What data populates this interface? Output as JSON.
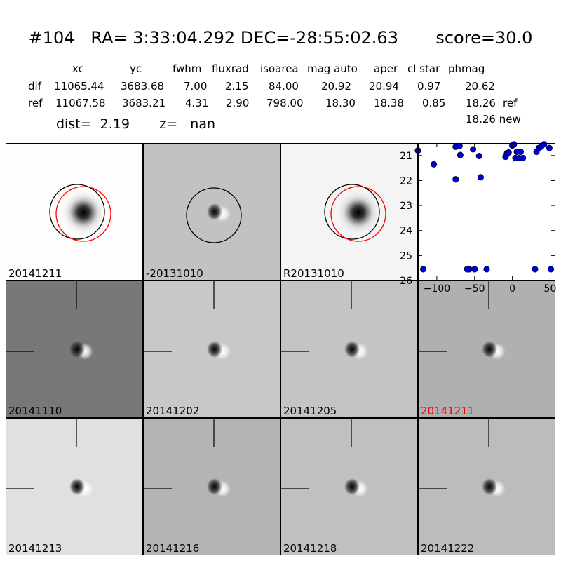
{
  "header": {
    "title": "#104   RA= 3:33:04.292 DEC=-28:55:02.63       score=30.0",
    "columns": [
      "xc",
      "yc",
      "fwhm",
      "fluxrad",
      "isoarea",
      "mag auto",
      "aper",
      "cl star",
      "phmag"
    ],
    "rows": [
      {
        "label": "dif",
        "values": [
          "11065.44",
          "3683.68",
          "7.00",
          "2.15",
          "84.00",
          "20.92",
          "20.94",
          "0.97",
          "20.62"
        ],
        "suffix": ""
      },
      {
        "label": "ref",
        "values": [
          "11067.58",
          "3683.21",
          "4.31",
          "2.90",
          "798.00",
          "18.30",
          "18.38",
          "0.85",
          "18.26"
        ],
        "suffix": "ref"
      }
    ],
    "dist_line": "dist=  2.19       z=   nan",
    "new_mag": "18.26 new"
  },
  "panels": [
    {
      "label": "20141211",
      "label_color": "#000000",
      "bg": "#fdfdfd",
      "style": "ref",
      "circles": [
        "black",
        "red"
      ]
    },
    {
      "label": "-20131010",
      "label_color": "#000000",
      "bg": "#c2c2c2",
      "style": "dif",
      "circles": [
        "black"
      ]
    },
    {
      "label": "R20131010",
      "label_color": "#000000",
      "bg": "#f4f4f4",
      "style": "ref",
      "circles": [
        "black",
        "red"
      ]
    },
    {
      "label": "20141110",
      "label_color": "#000000",
      "bg": "#787878",
      "style": "dif",
      "circles": []
    },
    {
      "label": "20141202",
      "label_color": "#000000",
      "bg": "#c8c8c8",
      "style": "dif",
      "circles": []
    },
    {
      "label": "20141205",
      "label_color": "#000000",
      "bg": "#c4c4c4",
      "style": "dif",
      "circles": []
    },
    {
      "label": "20141211",
      "label_color": "#ff0000",
      "bg": "#b0b0b0",
      "style": "dif",
      "circles": []
    },
    {
      "label": "20141213",
      "label_color": "#000000",
      "bg": "#e0e0e0",
      "style": "dif",
      "circles": []
    },
    {
      "label": "20141216",
      "label_color": "#000000",
      "bg": "#b4b4b4",
      "style": "dif",
      "circles": []
    },
    {
      "label": "20141218",
      "label_color": "#000000",
      "bg": "#c0c0c0",
      "style": "dif",
      "circles": []
    },
    {
      "label": "20141222",
      "label_color": "#000000",
      "bg": "#bcbcbc",
      "style": "dif",
      "circles": []
    }
  ],
  "chart_data": {
    "type": "scatter",
    "title": "",
    "xlabel": "",
    "ylabel": "",
    "xlim": [
      -125,
      57
    ],
    "ylim": [
      26,
      20.5
    ],
    "y_inverted": true,
    "xticks": [
      -100,
      -50,
      0,
      50
    ],
    "yticks": [
      21,
      22,
      23,
      24,
      25,
      26
    ],
    "marker_color": "#0000cc",
    "series": [
      {
        "x": [
          -125,
          -104,
          -75,
          -73,
          -70,
          -69,
          -75,
          -57,
          -52,
          -50,
          -44,
          -42,
          -34,
          -60,
          -50,
          -9,
          -7,
          -5,
          0,
          2,
          4,
          6,
          9,
          11,
          14,
          32,
          35,
          38,
          42,
          49,
          -118,
          30,
          51
        ],
        "y": [
          20.8,
          21.35,
          20.65,
          20.62,
          20.62,
          20.98,
          21.95,
          25.55,
          20.75,
          25.55,
          21.02,
          21.87,
          25.55,
          25.55,
          25.55,
          21.05,
          20.9,
          20.88,
          20.6,
          20.55,
          21.1,
          20.85,
          21.1,
          20.85,
          21.1,
          20.85,
          20.7,
          20.65,
          20.55,
          20.7,
          25.55,
          25.55,
          25.55
        ]
      }
    ]
  }
}
